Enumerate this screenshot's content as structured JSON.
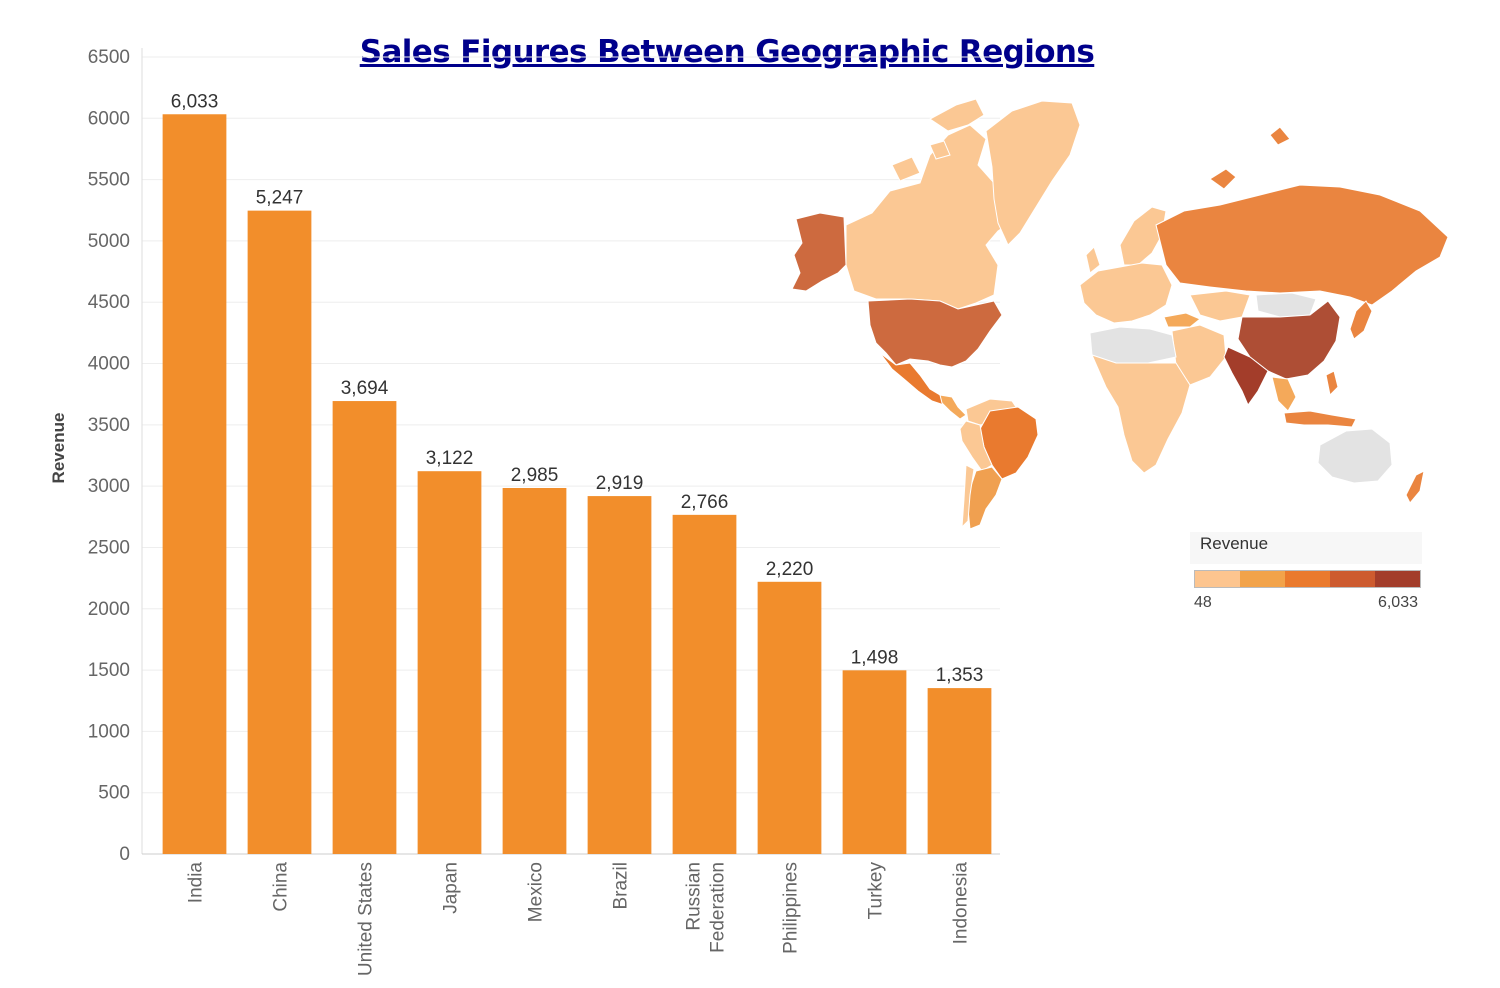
{
  "title": "Sales Figures Between Geographic Regions",
  "colors": {
    "title": "#00008b",
    "bar": "#f28e2b",
    "axis_text": "#666666",
    "gridline": "#eeeeee",
    "map_no_data": "#e3e3e3",
    "map_ocean": "#ffffff",
    "legend_ramp": [
      "#fdc58f",
      "#f2a34a",
      "#ea7a2d",
      "#cd5b2f",
      "#a33d2a"
    ]
  },
  "chart_data": [
    {
      "type": "bar",
      "title": "Sales Figures Between Geographic Regions",
      "xlabel": "",
      "ylabel": "Revenue",
      "categories": [
        "India",
        "China",
        "United States",
        "Japan",
        "Mexico",
        "Brazil",
        "Russian Federation",
        "Philippines",
        "Turkey",
        "Indonesia"
      ],
      "category_labels": [
        [
          "India"
        ],
        [
          "China"
        ],
        [
          "United States"
        ],
        [
          "Japan"
        ],
        [
          "Mexico"
        ],
        [
          "Brazil"
        ],
        [
          "Russian",
          "Federation"
        ],
        [
          "Philippines"
        ],
        [
          "Turkey"
        ],
        [
          "Indonesia"
        ]
      ],
      "values": [
        6033,
        5247,
        3694,
        3122,
        2985,
        2919,
        2766,
        2220,
        1498,
        1353
      ],
      "value_labels": [
        "6,033",
        "5,247",
        "3,694",
        "3,122",
        "2,985",
        "2,919",
        "2,766",
        "2,220",
        "1,498",
        "1,353"
      ],
      "ylim": [
        0,
        6500
      ],
      "yticks": [
        0,
        500,
        1000,
        1500,
        2000,
        2500,
        3000,
        3500,
        4000,
        4500,
        5000,
        5500,
        6000,
        6500
      ],
      "grid": true
    },
    {
      "type": "heatmap",
      "subtype": "choropleth-world-map",
      "legend_title": "Revenue",
      "legend_min": "48",
      "legend_max": "6,033",
      "legend_placement": "bottom-right",
      "highlighted_regions": [
        "India",
        "China",
        "United States",
        "Mexico",
        "Brazil",
        "Russian Federation",
        "Alaska",
        "Argentina",
        "Canada",
        "Greenland",
        "Europe",
        "Africa",
        "Japan",
        "Indonesia",
        "Philippines",
        "Turkey",
        "Australia",
        "New Zealand"
      ]
    }
  ]
}
